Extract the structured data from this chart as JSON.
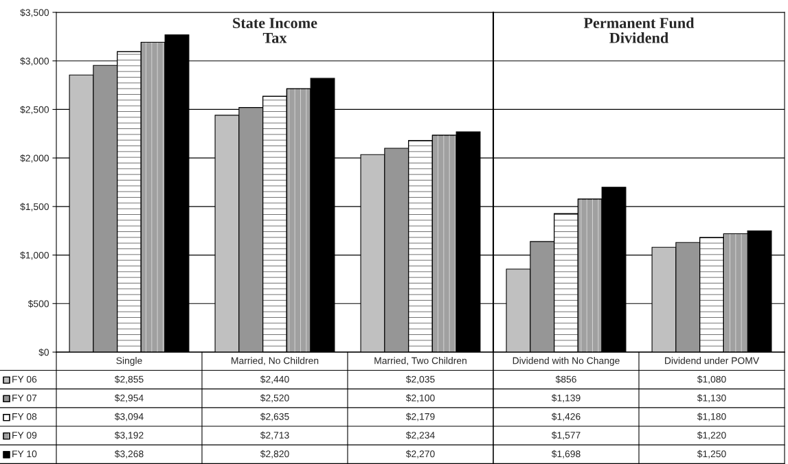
{
  "chart_data": [
    {
      "type": "bar",
      "title": "State Income\nTax",
      "categories": [
        "Single",
        "Married, No Children",
        "Married, Two Children"
      ],
      "series": [
        {
          "name": "FY 06",
          "color": "#c0c0c0",
          "values": [
            2855,
            2440,
            2035
          ],
          "value_labels": [
            "$2,855",
            "$2,440",
            "$2,035"
          ]
        },
        {
          "name": "FY 07",
          "color": "#969696",
          "values": [
            2954,
            2520,
            2100
          ],
          "value_labels": [
            "$2,954",
            "$2,520",
            "$2,100"
          ]
        },
        {
          "name": "FY 08",
          "color": "#ffffff",
          "values": [
            3094,
            2635,
            2179
          ],
          "value_labels": [
            "$3,094",
            "$2,635",
            "$2,179"
          ]
        },
        {
          "name": "FY 09",
          "color": "#a0a0a0",
          "values": [
            3192,
            2713,
            2234
          ],
          "value_labels": [
            "$3,192",
            "$2,713",
            "$2,234"
          ]
        },
        {
          "name": "FY 10",
          "color": "#000000",
          "values": [
            3268,
            2820,
            2270
          ],
          "value_labels": [
            "$3,268",
            "$2,820",
            "$2,270"
          ]
        }
      ],
      "ylim": [
        0,
        3500
      ],
      "yticks": [
        {
          "value": 0,
          "label": "$0"
        },
        {
          "value": 500,
          "label": "$500"
        },
        {
          "value": 1000,
          "label": "$1,000"
        },
        {
          "value": 1500,
          "label": "$1,500"
        },
        {
          "value": 2000,
          "label": "$2,000"
        },
        {
          "value": 2500,
          "label": "$2,500"
        },
        {
          "value": 3000,
          "label": "$3,000"
        },
        {
          "value": 3500,
          "label": "$3,500"
        }
      ],
      "grid": "y",
      "legend": "bottom",
      "data_labels": true
    },
    {
      "type": "bar",
      "title": "Permanent Fund\nDividend",
      "categories": [
        "Dividend with No Change",
        "Dividend under POMV"
      ],
      "series": [
        {
          "color": "#c0c0c0",
          "values": [
            856,
            1080
          ],
          "value_labels": [
            "$856",
            "$1,080"
          ]
        },
        {
          "color": "#969696",
          "values": [
            1139,
            1130
          ],
          "value_labels": [
            "$1,139",
            "$1,130"
          ]
        },
        {
          "color": "#ffffff",
          "values": [
            1426,
            1180
          ],
          "value_labels": [
            "$1,426",
            "$1,180"
          ]
        },
        {
          "color": "#a0a0a0",
          "values": [
            1577,
            1220
          ],
          "value_labels": [
            "$1,577",
            "$1,220"
          ]
        },
        {
          "color": "#000000",
          "values": [
            1698,
            1250
          ],
          "value_labels": [
            "$1,698",
            "$1,250"
          ]
        }
      ],
      "ylim": [
        0,
        3500
      ],
      "yticks": [
        {
          "value": 0,
          "label": null
        },
        {
          "value": 500,
          "label": null
        },
        {
          "value": 1000,
          "label": null
        },
        {
          "value": 1500,
          "label": null
        },
        {
          "value": 2000,
          "label": null
        },
        {
          "value": 2500,
          "label": null
        },
        {
          "value": 3000,
          "label": null
        },
        {
          "value": 3500,
          "label": null
        }
      ],
      "grid": "y",
      "tick_labels": "x",
      "data_labels": true
    }
  ]
}
